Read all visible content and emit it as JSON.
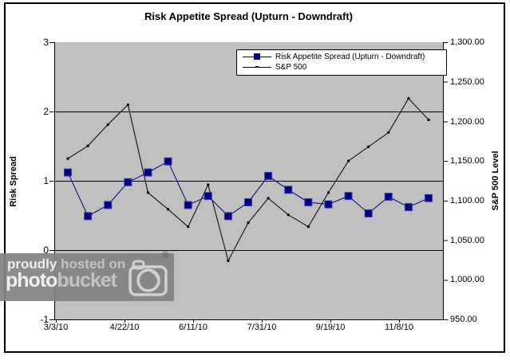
{
  "title": "Risk Appetite Spread (Upturn - Downdraft)",
  "chart_data": {
    "type": "line",
    "title": "Risk Appetite Spread (Upturn - Downdraft)",
    "plot_background": "#C0C0C0",
    "grid": "horizontal-major",
    "x_axis": {
      "tick_labels": [
        "3/3/10",
        "4/22/10",
        "6/11/10",
        "7/31/10",
        "9/19/10",
        "11/8/10"
      ]
    },
    "left_axis": {
      "label": "Risk Spread",
      "min": -1,
      "max": 3,
      "ticks": [
        "3",
        "2",
        "1",
        "0",
        "-1"
      ]
    },
    "right_axis": {
      "label": "S&P 500 Level",
      "min": 950,
      "max": 1300,
      "ticks": [
        "1,300.00",
        "1,250.00",
        "1,200.00",
        "1,150.00",
        "1,100.00",
        "1,050.00",
        "1,000.00",
        "950.00"
      ]
    },
    "legend": {
      "position": "top-right-inside",
      "entries": [
        "Risk Appetite Spread (Upturn - Downdraft)",
        "S&P 500"
      ]
    },
    "gridlines_at_left_values": [
      2,
      1,
      0
    ],
    "series": [
      {
        "name": "Risk Appetite Spread (Upturn - Downdraft)",
        "axis": "left",
        "color": "#000080",
        "marker": "square",
        "values": [
          1.12,
          0.49,
          0.65,
          0.98,
          1.12,
          1.28,
          0.65,
          0.78,
          0.49,
          0.69,
          1.07,
          0.87,
          0.69,
          0.66,
          0.78,
          0.53,
          0.77,
          0.62,
          0.75
        ]
      },
      {
        "name": "S&P 500",
        "axis": "right",
        "color": "#000000",
        "marker": "dash",
        "values": [
          1153,
          1169,
          1196,
          1221,
          1110,
          1089,
          1067,
          1120,
          1024,
          1072,
          1103,
          1082,
          1067,
          1110,
          1150,
          1168,
          1186,
          1229,
          1202
        ]
      }
    ]
  },
  "watermark": {
    "line1_a": "proudly",
    "line1_b": " hosted on",
    "line2_a": "photo",
    "line2_b": "bucket",
    "registered": "®"
  }
}
